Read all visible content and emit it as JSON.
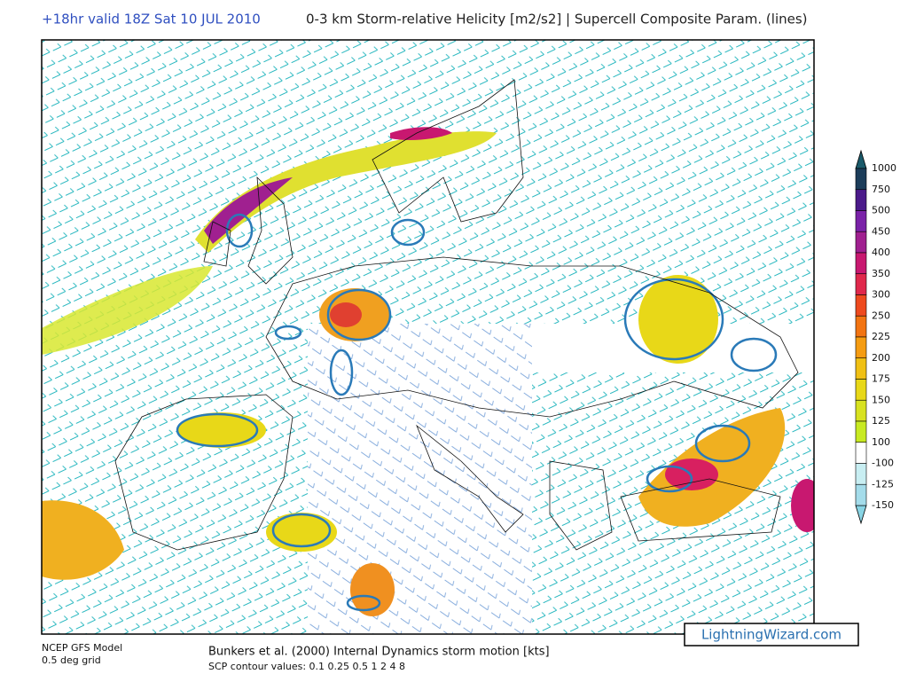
{
  "header": {
    "run": "+18hr valid 18Z Sat 10 JUL 2010",
    "field": "0-3 km Storm-relative Helicity [m2/s2] | Supercell Composite Param. (lines)"
  },
  "colorbar": {
    "labels": [
      "1000",
      "750",
      "500",
      "450",
      "400",
      "350",
      "300",
      "250",
      "225",
      "200",
      "175",
      "150",
      "125",
      "100",
      "-100",
      "-125",
      "-150"
    ],
    "colors": [
      "#1c3d5a",
      "#4b1a8a",
      "#7a22a8",
      "#a02090",
      "#c81870",
      "#e0284c",
      "#ee4a1e",
      "#f27412",
      "#f59c12",
      "#f0c014",
      "#e8d818",
      "#d8e220",
      "#c8ea22",
      "#ffffff",
      "#c8eef2",
      "#a4dcea"
    ],
    "over_color": "#1a5a6a",
    "under_color": "#88d4e4"
  },
  "footer": {
    "model": "NCEP GFS Model",
    "grid": "0.5 deg grid",
    "motion": "Bunkers et al. (2000) Internal Dynamics storm motion [kts]",
    "contours": "SCP contour values: 0.1 0.25 0.5 1 2 4 8",
    "logo": "LightningWizard.com"
  }
}
